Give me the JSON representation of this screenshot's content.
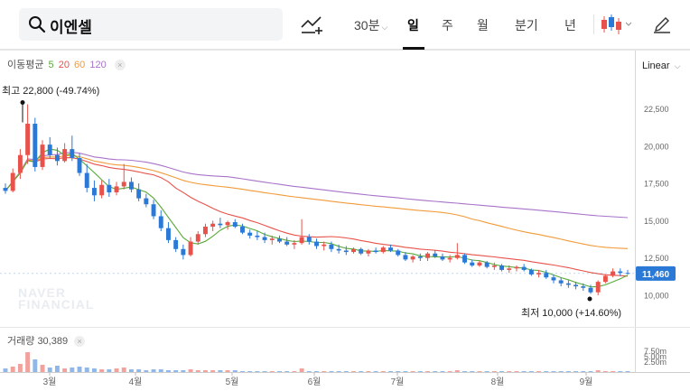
{
  "search": {
    "query": "이엔셀"
  },
  "toolbar": {
    "periods": [
      {
        "label": "30분",
        "dropdown": true,
        "active": false
      },
      {
        "label": "일",
        "dropdown": false,
        "active": true
      },
      {
        "label": "주",
        "dropdown": false,
        "active": false
      },
      {
        "label": "월",
        "dropdown": false,
        "active": false
      },
      {
        "label": "분기",
        "dropdown": false,
        "active": false
      },
      {
        "label": "년",
        "dropdown": false,
        "active": false
      }
    ],
    "icons": [
      "search-icon",
      "trend-line-add-icon",
      "candlestick-type-icon",
      "chevron-down-icon",
      "pencil-icon"
    ]
  },
  "ma_legend": {
    "label": "이동평균",
    "periods": [
      {
        "value": "5",
        "color": "#5aaa3c"
      },
      {
        "value": "20",
        "color": "#e8524a"
      },
      {
        "value": "60",
        "color": "#f29a38"
      },
      {
        "value": "120",
        "color": "#a873c9"
      }
    ]
  },
  "scale_label": "Linear",
  "watermark": [
    "NAVER",
    "FINANCIAL"
  ],
  "volume_legend": {
    "label": "거래량",
    "value": "30,389"
  },
  "colors": {
    "up": "#e8524a",
    "down": "#2b79d6",
    "current_price_tag": "#2b79d6"
  },
  "chart_data": {
    "type": "candlestick",
    "y_axis": {
      "ticks": [
        "22,500",
        "20,000",
        "17,500",
        "15,000",
        "12,500",
        "10,000"
      ],
      "tick_values": [
        22500,
        20000,
        17500,
        15000,
        12500,
        10000
      ]
    },
    "x_axis": {
      "ticks": [
        "3월",
        "4월",
        "5월",
        "6월",
        "7월",
        "8월",
        "9월"
      ]
    },
    "high_annotation": {
      "label": "최고",
      "value": "22,800",
      "change": "(-49.74%)",
      "price": 22800
    },
    "low_annotation": {
      "label": "최저",
      "value": "10,000",
      "change": "(+14.60%)",
      "price": 10000
    },
    "current_price": {
      "label": "11,460",
      "value": 11460
    },
    "volume_axis": {
      "ticks": [
        "7.50m",
        "5.00m",
        "2.50m"
      ]
    },
    "candles": [
      [
        17200,
        17500,
        16800,
        17000
      ],
      [
        17000,
        18500,
        16900,
        18200
      ],
      [
        18200,
        19800,
        17800,
        19400
      ],
      [
        19400,
        22800,
        18800,
        21500
      ],
      [
        21500,
        21900,
        18300,
        18600
      ],
      [
        18600,
        20400,
        18400,
        20100
      ],
      [
        20100,
        20600,
        19200,
        19400
      ],
      [
        19400,
        19900,
        18700,
        19000
      ],
      [
        19000,
        20200,
        18900,
        19800
      ],
      [
        19800,
        20700,
        19000,
        19200
      ],
      [
        19200,
        19500,
        18000,
        18200
      ],
      [
        18200,
        18800,
        16900,
        17200
      ],
      [
        17200,
        17700,
        16300,
        16700
      ],
      [
        16700,
        17700,
        16500,
        17400
      ],
      [
        17400,
        17800,
        16600,
        16900
      ],
      [
        16900,
        17600,
        16700,
        17300
      ],
      [
        17300,
        18800,
        17100,
        17600
      ],
      [
        17600,
        17900,
        16900,
        17100
      ],
      [
        17100,
        17500,
        16300,
        16500
      ],
      [
        16500,
        16800,
        15900,
        16100
      ],
      [
        16100,
        16400,
        15100,
        15300
      ],
      [
        15300,
        15700,
        14300,
        14500
      ],
      [
        14500,
        14900,
        13500,
        13700
      ],
      [
        13700,
        13900,
        12900,
        13100
      ],
      [
        13100,
        13400,
        12400,
        12700
      ],
      [
        12700,
        13900,
        12600,
        13600
      ],
      [
        13600,
        14300,
        13400,
        14100
      ],
      [
        14100,
        14800,
        13900,
        14600
      ],
      [
        14600,
        15000,
        14300,
        14800
      ],
      [
        14800,
        15200,
        14500,
        14700
      ],
      [
        14700,
        15000,
        14400,
        14900
      ],
      [
        14900,
        15100,
        14500,
        14600
      ],
      [
        14600,
        14800,
        14100,
        14200
      ],
      [
        14200,
        14400,
        13800,
        14000
      ],
      [
        14000,
        14300,
        13700,
        13900
      ],
      [
        13900,
        14200,
        13500,
        13700
      ],
      [
        13700,
        14000,
        13400,
        13800
      ],
      [
        13800,
        14000,
        13500,
        13600
      ],
      [
        13600,
        13900,
        13300,
        13400
      ],
      [
        13400,
        13700,
        13100,
        13500
      ],
      [
        13500,
        15100,
        13400,
        13900
      ],
      [
        13900,
        14100,
        13400,
        13600
      ],
      [
        13600,
        13800,
        13100,
        13300
      ],
      [
        13300,
        13600,
        13000,
        13400
      ],
      [
        13400,
        13600,
        12900,
        13100
      ],
      [
        13100,
        13400,
        12800,
        13000
      ],
      [
        13000,
        13300,
        12700,
        12900
      ],
      [
        12900,
        13200,
        12800,
        13100
      ],
      [
        13100,
        13200,
        12700,
        12800
      ],
      [
        12800,
        13100,
        12600,
        13000
      ],
      [
        13000,
        13200,
        12800,
        12900
      ],
      [
        12900,
        13300,
        12800,
        13200
      ],
      [
        13200,
        13400,
        12900,
        13000
      ],
      [
        13000,
        13100,
        12600,
        12700
      ],
      [
        12700,
        12900,
        12300,
        12400
      ],
      [
        12400,
        12700,
        12200,
        12600
      ],
      [
        12600,
        12800,
        12300,
        12500
      ],
      [
        12500,
        12900,
        12300,
        12800
      ],
      [
        12800,
        13000,
        12500,
        12600
      ],
      [
        12600,
        12800,
        12300,
        12400
      ],
      [
        12400,
        12700,
        12200,
        12500
      ],
      [
        12500,
        13500,
        12400,
        12700
      ],
      [
        12700,
        12800,
        12100,
        12200
      ],
      [
        12200,
        12400,
        11900,
        12000
      ],
      [
        12000,
        12300,
        11900,
        12200
      ],
      [
        12200,
        12300,
        11800,
        11900
      ],
      [
        11900,
        12200,
        11700,
        12000
      ],
      [
        12000,
        12100,
        11600,
        11700
      ],
      [
        11700,
        12000,
        11500,
        11800
      ],
      [
        11800,
        12000,
        11600,
        11900
      ],
      [
        11900,
        12100,
        11600,
        11700
      ],
      [
        11700,
        11800,
        11300,
        11400
      ],
      [
        11400,
        11700,
        11200,
        11500
      ],
      [
        11500,
        11700,
        11100,
        11200
      ],
      [
        11200,
        11400,
        10800,
        11000
      ],
      [
        11000,
        11200,
        10600,
        10800
      ],
      [
        10800,
        11000,
        10500,
        10700
      ],
      [
        10700,
        10900,
        10400,
        10600
      ],
      [
        10600,
        10800,
        10300,
        10500
      ],
      [
        10500,
        10700,
        10100,
        10200
      ],
      [
        10200,
        11000,
        10000,
        10900
      ],
      [
        10900,
        11400,
        10800,
        11300
      ],
      [
        11300,
        11800,
        11200,
        11600
      ],
      [
        11600,
        11800,
        11300,
        11500
      ],
      [
        11500,
        11700,
        11400,
        11460
      ]
    ],
    "ma_colors": {
      "ma5": "#5aaa3c",
      "ma20": "#e8524a",
      "ma60": "#f29a38",
      "ma120": "#a873c9"
    }
  }
}
